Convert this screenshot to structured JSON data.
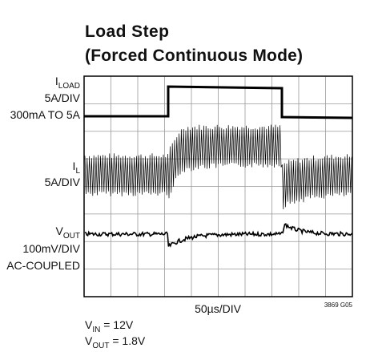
{
  "title": [
    "Load Step",
    "(Forced Continuous Mode)"
  ],
  "channels": [
    {
      "symbol": "I",
      "subscript": "LOAD",
      "lines": [
        "5A/DIV",
        "300mA TO 5A"
      ]
    },
    {
      "symbol": "I",
      "subscript": "L",
      "lines": [
        "5A/DIV"
      ]
    },
    {
      "symbol": "V",
      "subscript": "OUT",
      "lines": [
        "100mV/DIV",
        "AC-COUPLED"
      ]
    }
  ],
  "timebase": "50µs/DIV",
  "figure_id": "3869 G05",
  "conditions": [
    {
      "symbol": "V",
      "subscript": "IN",
      "text": " = 12V"
    },
    {
      "symbol": "V",
      "subscript": "OUT",
      "text": " = 1.8V"
    }
  ]
}
